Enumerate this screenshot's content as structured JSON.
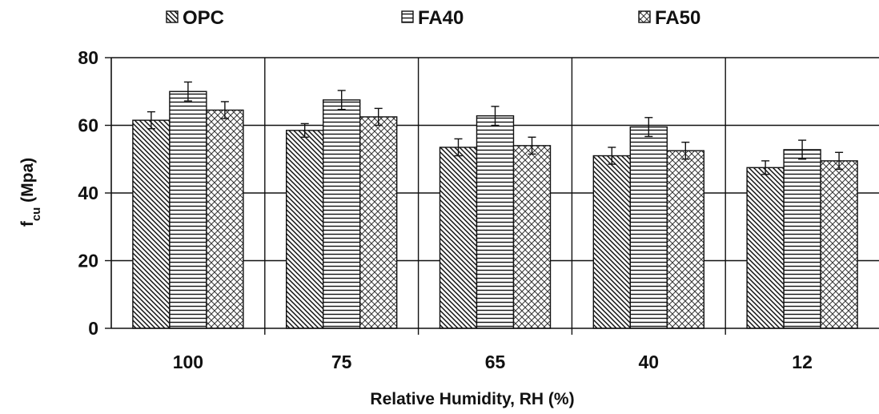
{
  "chart_data": {
    "type": "bar",
    "title": "",
    "xlabel": "Relative Humidity, RH (%)",
    "ylabel_main": "f",
    "ylabel_sub": "cu",
    "ylabel_unit": "(Mpa)",
    "ylim": [
      0,
      80
    ],
    "yticks": [
      0,
      20,
      40,
      60,
      80
    ],
    "grid": true,
    "legend_position": "top",
    "categories": [
      "100",
      "75",
      "65",
      "40",
      "12"
    ],
    "series": [
      {
        "name": "OPC",
        "pattern": "diagonal",
        "values": [
          61.5,
          58.5,
          53.5,
          51.0,
          47.5
        ],
        "errors": [
          2.5,
          2.0,
          2.5,
          2.5,
          2.0
        ]
      },
      {
        "name": "FA40",
        "pattern": "horizontal",
        "values": [
          70.0,
          67.5,
          62.8,
          59.5,
          52.8
        ],
        "errors": [
          2.8,
          2.8,
          2.8,
          2.8,
          2.8
        ]
      },
      {
        "name": "FA50",
        "pattern": "crosshatch",
        "values": [
          64.5,
          62.5,
          54.0,
          52.5,
          49.5
        ],
        "errors": [
          2.5,
          2.5,
          2.5,
          2.5,
          2.5
        ]
      }
    ]
  }
}
